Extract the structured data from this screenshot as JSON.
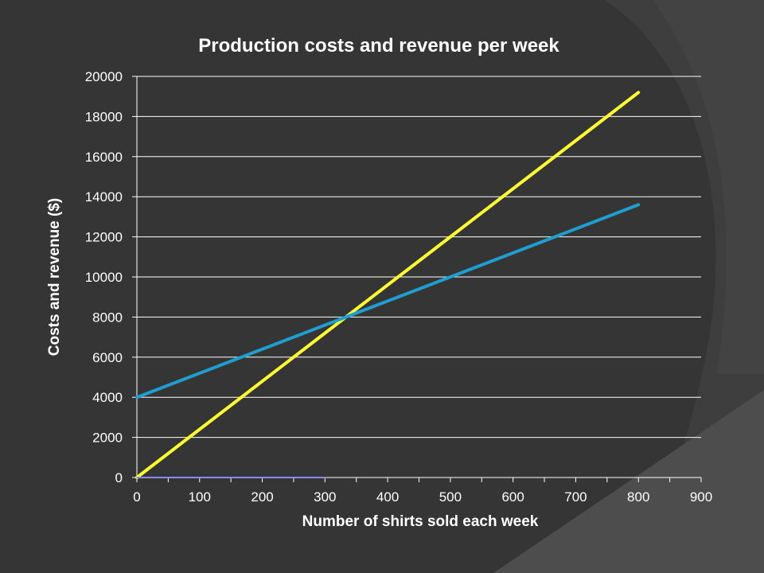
{
  "chart_data": {
    "type": "line",
    "title": "Production costs and revenue per week",
    "xlabel": "Number of shirts sold each week",
    "ylabel": "Costs and revenue ($)",
    "xlim": [
      0,
      900
    ],
    "ylim": [
      0,
      20000
    ],
    "x_ticks": [
      0,
      100,
      200,
      300,
      400,
      500,
      600,
      700,
      800,
      900
    ],
    "y_ticks": [
      0,
      2000,
      4000,
      6000,
      8000,
      10000,
      12000,
      14000,
      16000,
      18000,
      20000
    ],
    "grid": "horizontal",
    "legend": "none",
    "series": [
      {
        "color": "#ffff33",
        "points": [
          [
            0,
            0
          ],
          [
            800,
            19200
          ]
        ]
      },
      {
        "color": "#1f9ed1",
        "points": [
          [
            0,
            4000
          ],
          [
            800,
            13600
          ]
        ]
      },
      {
        "color": "#8a8aff",
        "points": [
          [
            0,
            0
          ],
          [
            300,
            0
          ]
        ]
      }
    ]
  },
  "colors": {
    "background": "#353535",
    "decor_shape": "#444444",
    "gridline": "#ffffff",
    "text": "#ffffff"
  }
}
